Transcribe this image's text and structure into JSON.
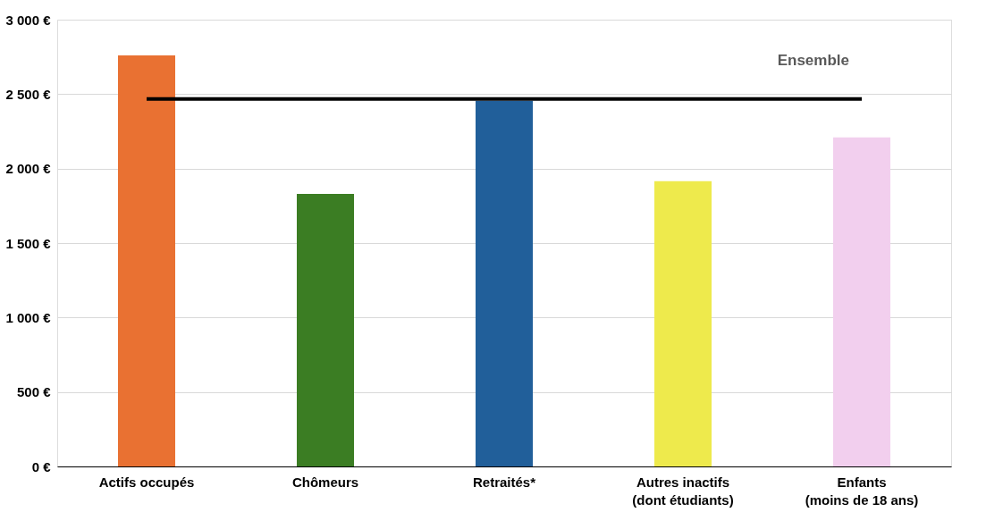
{
  "chart_data": {
    "type": "bar",
    "categories": [
      "Actifs occupés",
      "Chômeurs",
      "Retraités*",
      "Autres inactifs\n(dont étudiants)",
      "Enfants\n(moins de 18 ans)"
    ],
    "values": [
      2760,
      1830,
      2455,
      1915,
      2210
    ],
    "colors": [
      "#e97132",
      "#3b7d23",
      "#215f9a",
      "#eeea4c",
      "#f2cfee"
    ],
    "ylim": [
      0,
      3000
    ],
    "yticks": [
      {
        "value": 0,
        "label": "0 €"
      },
      {
        "value": 500,
        "label": "500 €"
      },
      {
        "value": 1000,
        "label": "1 000 €"
      },
      {
        "value": 1500,
        "label": "1 500 €"
      },
      {
        "value": 2000,
        "label": "2 000 €"
      },
      {
        "value": 2500,
        "label": "2 500 €"
      },
      {
        "value": 3000,
        "label": "3 000 €"
      }
    ],
    "grid": "y",
    "ref_lines": [
      {
        "axis": "y",
        "value": 2467,
        "label": "Ensemble",
        "color": "#000000"
      }
    ]
  }
}
